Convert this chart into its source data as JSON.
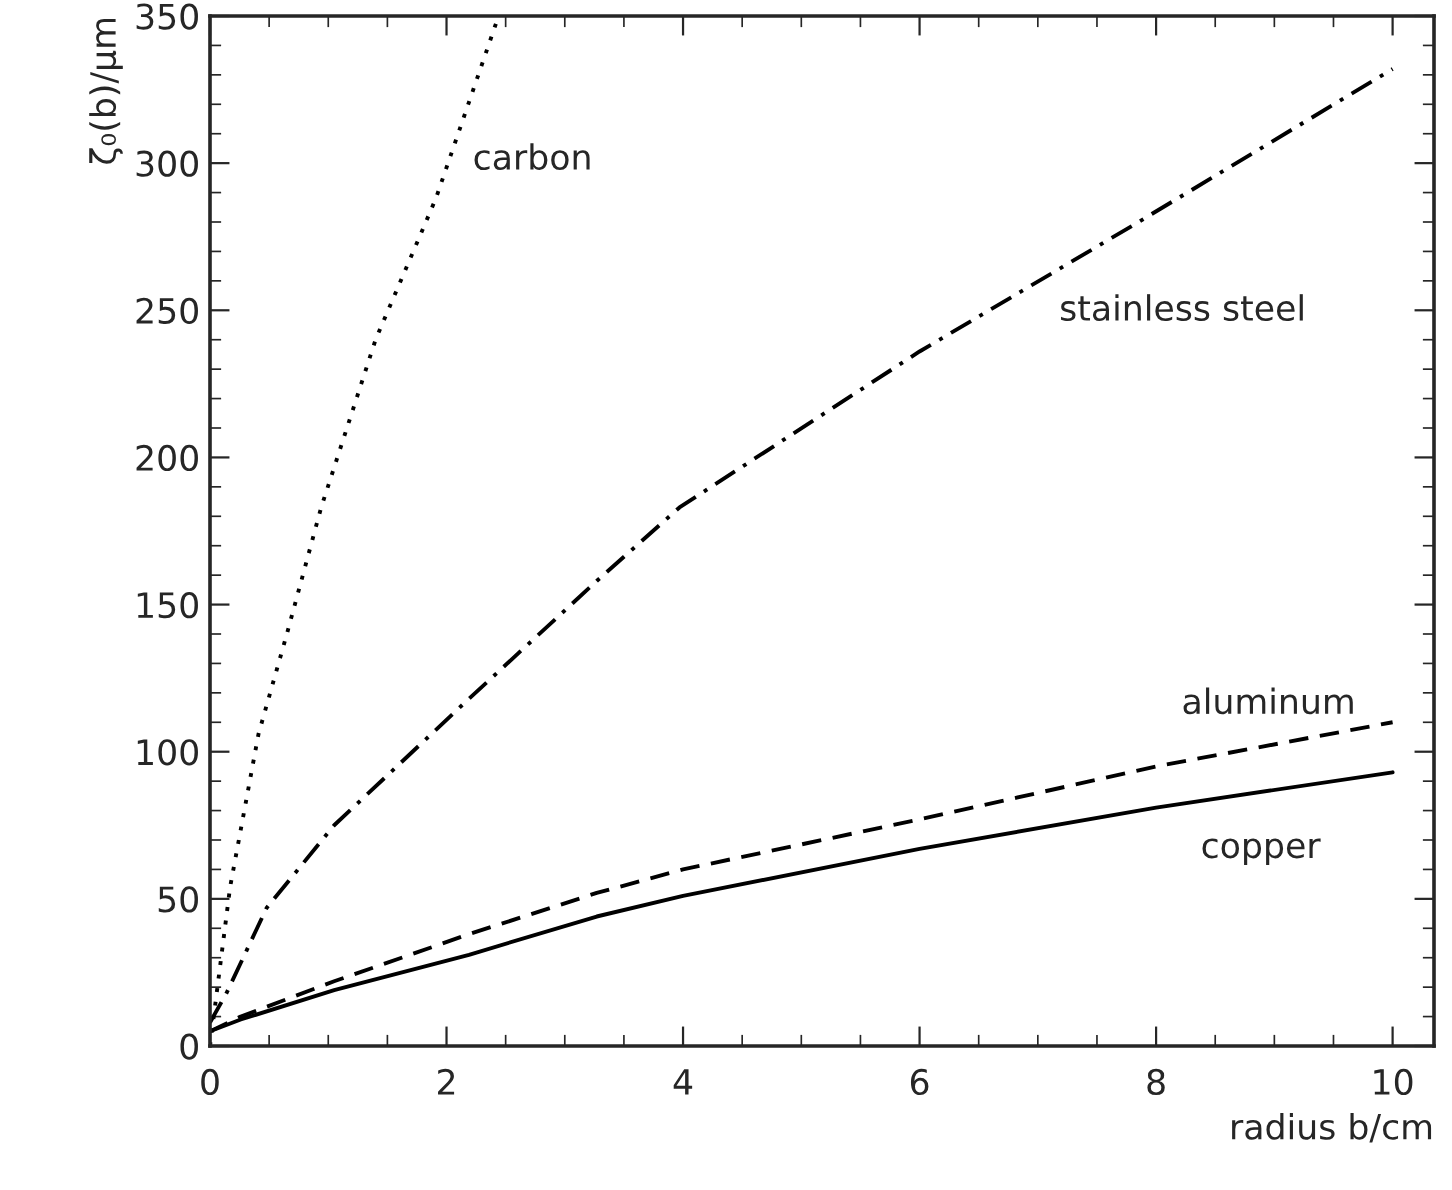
{
  "chart_data": {
    "type": "line",
    "xlabel": "radius b/cm",
    "ylabel": "ζ₀(b)/μm",
    "xlim": [
      0,
      10.35
    ],
    "ylim": [
      0,
      350
    ],
    "xticks": [
      0,
      2,
      4,
      6,
      8,
      10
    ],
    "yticks": [
      0,
      50,
      100,
      150,
      200,
      250,
      300,
      350
    ],
    "grid": false,
    "legend": false,
    "marker": "none",
    "series": [
      {
        "name": "carbon",
        "color": "#000000",
        "line_style": "dotted",
        "x": [
          0,
          0.17,
          0.41,
          0.65,
          0.94,
          1.4,
          1.91,
          2.44
        ],
        "values": [
          0,
          54,
          106,
          140,
          183,
          240,
          288,
          350
        ]
      },
      {
        "name": "stainless steel",
        "color": "#000000",
        "line_style": "dashdot",
        "x": [
          0,
          0.14,
          0.48,
          1.05,
          2.19,
          3.27,
          3.97,
          6,
          7.81,
          10
        ],
        "values": [
          8,
          18,
          47,
          75,
          118,
          158,
          183,
          236,
          279,
          332
        ]
      },
      {
        "name": "aluminum",
        "color": "#000000",
        "line_style": "dashed",
        "x": [
          0,
          0.26,
          1.05,
          2.19,
          3.27,
          4,
          6,
          8,
          10
        ],
        "values": [
          5,
          10,
          22,
          38,
          52,
          60,
          77,
          95,
          110
        ]
      },
      {
        "name": "copper",
        "color": "#000000",
        "line_style": "solid",
        "x": [
          0,
          0.26,
          1.05,
          2.19,
          3.27,
          4,
          6,
          8,
          10
        ],
        "values": [
          5,
          9,
          19,
          31,
          44,
          51,
          67,
          81,
          93
        ]
      }
    ]
  }
}
